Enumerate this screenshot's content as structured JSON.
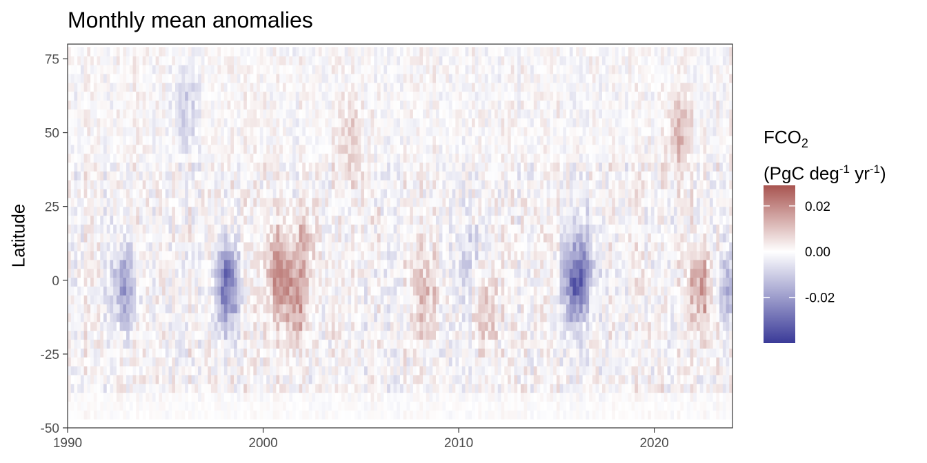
{
  "chart_data": {
    "type": "heatmap",
    "title": "Monthly mean anomalies",
    "xlabel": "",
    "ylabel": "Latitude",
    "xlim": [
      1990,
      2024
    ],
    "ylim": [
      -50,
      80
    ],
    "data_lat_range": [
      -47,
      79
    ],
    "x_ticks": [
      1990,
      2000,
      2010,
      2020
    ],
    "y_ticks": [
      75,
      50,
      25,
      0,
      -25,
      -50
    ],
    "legend": {
      "title_line1": "FCO",
      "title_line1_sub": "2",
      "title_line2_a": "(PgC deg",
      "title_line2_sup1": "-1",
      "title_line2_b": " yr",
      "title_line2_sup2": "-1",
      "title_line2_c": ")",
      "ticks": [
        0.02,
        0.0,
        -0.02
      ],
      "tick_labels": [
        "0.02",
        "0.00",
        "-0.02"
      ],
      "range": [
        -0.04,
        0.029
      ],
      "placement": "right"
    },
    "colors": {
      "low": "#3a3a98",
      "mid": "#ffffff",
      "high": "#a85450"
    },
    "grid": false,
    "notable_anomalies": [
      {
        "x": 1992.8,
        "lat": -2,
        "value": -0.02
      },
      {
        "x": 1998.1,
        "lat": -2,
        "value": -0.03
      },
      {
        "x": 2000.7,
        "lat": 3,
        "value": 0.018
      },
      {
        "x": 2001.6,
        "lat": -8,
        "value": 0.016
      },
      {
        "x": 2002.0,
        "lat": 12,
        "value": 0.01
      },
      {
        "x": 2008.2,
        "lat": -5,
        "value": 0.011
      },
      {
        "x": 2011.3,
        "lat": -10,
        "value": 0.012
      },
      {
        "x": 2010.5,
        "lat": 5,
        "value": -0.008
      },
      {
        "x": 2015.8,
        "lat": -2,
        "value": -0.022
      },
      {
        "x": 2016.3,
        "lat": 5,
        "value": -0.016
      },
      {
        "x": 2022.3,
        "lat": -3,
        "value": 0.017
      },
      {
        "x": 2023.8,
        "lat": -2,
        "value": -0.014
      },
      {
        "x": 2021.2,
        "lat": 50,
        "value": 0.012
      },
      {
        "x": 1996.0,
        "lat": 58,
        "value": -0.009
      },
      {
        "x": 2004.4,
        "lat": 48,
        "value": 0.008
      }
    ]
  }
}
